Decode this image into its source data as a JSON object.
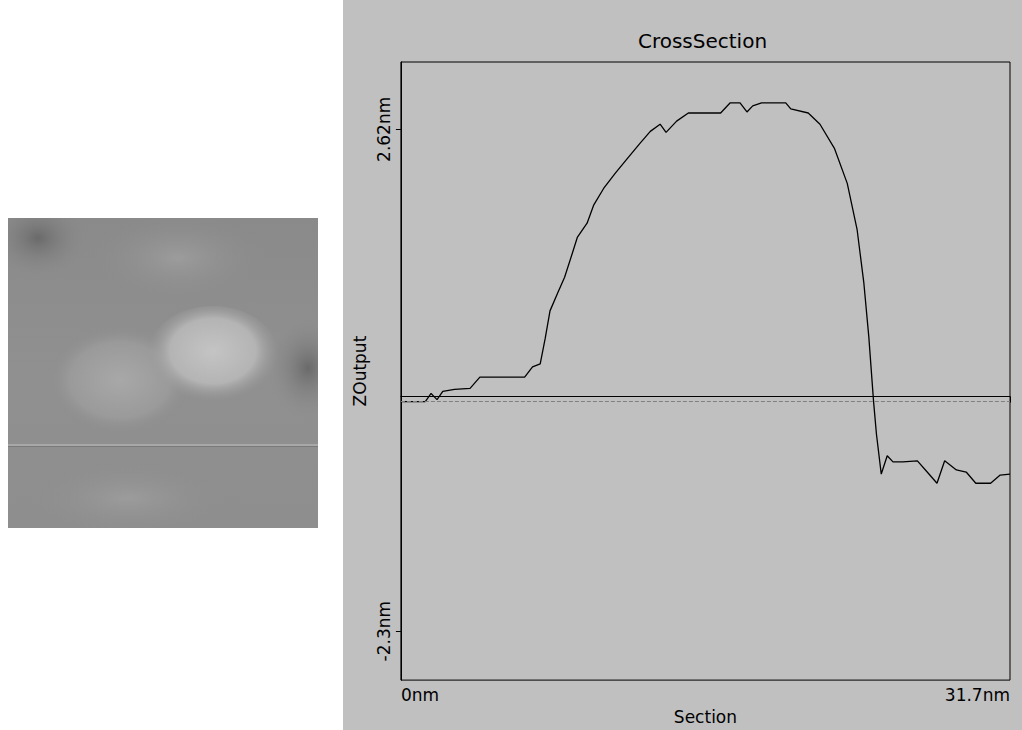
{
  "chart_data": {
    "type": "line",
    "title": "CrossSection",
    "x_label": "Section",
    "y_label": "ZOutput",
    "x": [
      0,
      1.27,
      1.57,
      1.88,
      2.18,
      2.79,
      3.6,
      4.11,
      5.22,
      6.44,
      6.85,
      7.25,
      7.51,
      7.76,
      8.17,
      8.52,
      8.93,
      9.18,
      9.69,
      10.04,
      10.55,
      11.16,
      11.77,
      12.43,
      12.98,
      13.49,
      13.8,
      14.35,
      14.96,
      15.98,
      16.64,
      17.14,
      17.65,
      18.01,
      18.31,
      18.77,
      20.03,
      20.29,
      21.2,
      21.81,
      22.57,
      23.23,
      23.74,
      24.09,
      24.35,
      24.6,
      24.75,
      25.0,
      25.31,
      25.61,
      26.12,
      26.88,
      27.39,
      27.9,
      28.3,
      28.91,
      29.42,
      29.92,
      30.69,
      31.19,
      31.7
    ],
    "values": [
      -0.05,
      -0.05,
      0.03,
      -0.03,
      0.05,
      0.07,
      0.08,
      0.19,
      0.19,
      0.19,
      0.29,
      0.32,
      0.57,
      0.84,
      1.02,
      1.17,
      1.41,
      1.56,
      1.7,
      1.88,
      2.04,
      2.19,
      2.33,
      2.48,
      2.6,
      2.67,
      2.59,
      2.7,
      2.78,
      2.78,
      2.78,
      2.88,
      2.88,
      2.79,
      2.85,
      2.88,
      2.88,
      2.82,
      2.78,
      2.67,
      2.43,
      2.09,
      1.64,
      1.12,
      0.59,
      -0.05,
      -0.37,
      -0.76,
      -0.58,
      -0.64,
      -0.64,
      -0.63,
      -0.74,
      -0.85,
      -0.63,
      -0.72,
      -0.74,
      -0.85,
      -0.85,
      -0.77,
      -0.76
    ],
    "color": "#000000",
    "xlim": [
      0,
      31.7
    ],
    "xticks": [
      {
        "value": 0,
        "label": "0nm"
      },
      {
        "value": 31.7,
        "label": "31.7nm"
      }
    ],
    "ylim": [
      -2.78,
      3.28
    ],
    "yticks": [
      {
        "value": 2.62,
        "label": "2.62nm"
      },
      {
        "value": -2.3,
        "label": "-2.3nm"
      }
    ],
    "grid": false,
    "reference_line": {
      "y": -0.05,
      "color": "#808080",
      "line_style": "dashed"
    }
  }
}
